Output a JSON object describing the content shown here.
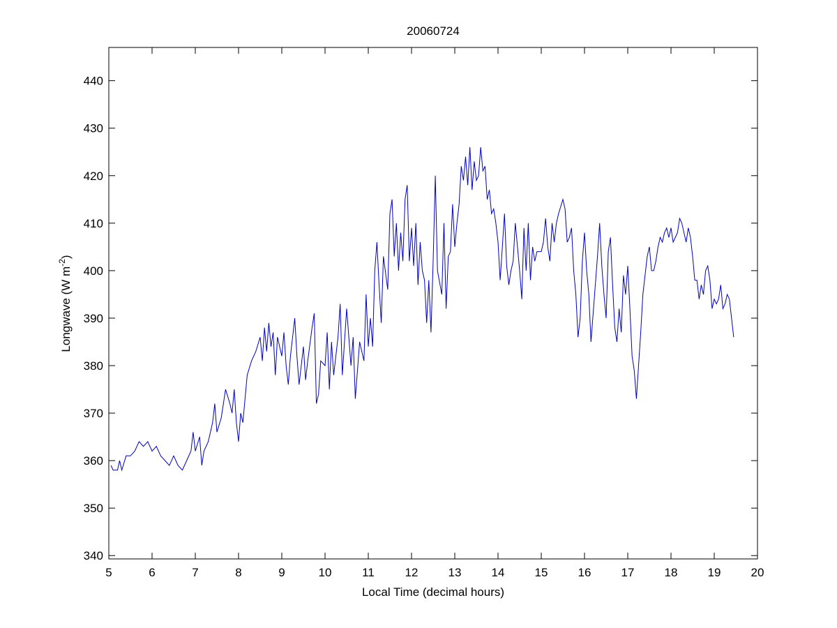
{
  "chart_data": {
    "type": "line",
    "title": "20060724",
    "xlabel": "Local Time (decimal hours)",
    "ylabel": {
      "text": "Longwave (W m",
      "superscript": "-2",
      "end": ")"
    },
    "xlim": [
      5,
      20
    ],
    "ylim": [
      339.3,
      447
    ],
    "xticks": [
      5,
      6,
      7,
      8,
      9,
      10,
      11,
      12,
      13,
      14,
      15,
      16,
      17,
      18,
      19,
      20
    ],
    "yticks": [
      340,
      350,
      360,
      370,
      380,
      390,
      400,
      410,
      420,
      430,
      440
    ],
    "grid": false,
    "series": [
      {
        "color": "#0000c0",
        "x": [
          5.05,
          5.1,
          5.2,
          5.25,
          5.3,
          5.4,
          5.5,
          5.6,
          5.7,
          5.8,
          5.9,
          6.0,
          6.1,
          6.2,
          6.3,
          6.4,
          6.5,
          6.6,
          6.7,
          6.8,
          6.9,
          6.95,
          7.0,
          7.1,
          7.15,
          7.2,
          7.3,
          7.4,
          7.45,
          7.5,
          7.6,
          7.7,
          7.8,
          7.85,
          7.9,
          7.95,
          8.0,
          8.05,
          8.1,
          8.2,
          8.3,
          8.4,
          8.5,
          8.55,
          8.6,
          8.65,
          8.7,
          8.75,
          8.8,
          8.85,
          8.9,
          9.0,
          9.05,
          9.1,
          9.15,
          9.2,
          9.3,
          9.35,
          9.4,
          9.5,
          9.55,
          9.6,
          9.7,
          9.75,
          9.8,
          9.85,
          9.9,
          10.0,
          10.05,
          10.1,
          10.15,
          10.2,
          10.3,
          10.35,
          10.4,
          10.45,
          10.5,
          10.6,
          10.65,
          10.7,
          10.8,
          10.9,
          10.95,
          11.0,
          11.05,
          11.1,
          11.15,
          11.2,
          11.25,
          11.3,
          11.35,
          11.45,
          11.5,
          11.55,
          11.6,
          11.65,
          11.7,
          11.75,
          11.8,
          11.85,
          11.9,
          11.95,
          12.0,
          12.05,
          12.1,
          12.15,
          12.2,
          12.25,
          12.3,
          12.35,
          12.4,
          12.45,
          12.5,
          12.55,
          12.6,
          12.7,
          12.75,
          12.8,
          12.85,
          12.9,
          12.95,
          13.0,
          13.05,
          13.1,
          13.15,
          13.2,
          13.25,
          13.3,
          13.35,
          13.4,
          13.45,
          13.5,
          13.55,
          13.6,
          13.65,
          13.7,
          13.75,
          13.8,
          13.85,
          13.9,
          13.95,
          14.0,
          14.05,
          14.1,
          14.15,
          14.2,
          14.25,
          14.3,
          14.35,
          14.4,
          14.45,
          14.5,
          14.55,
          14.6,
          14.65,
          14.7,
          14.75,
          14.8,
          14.85,
          14.9,
          15.0,
          15.05,
          15.1,
          15.15,
          15.2,
          15.25,
          15.3,
          15.35,
          15.4,
          15.5,
          15.55,
          15.6,
          15.65,
          15.7,
          15.75,
          15.8,
          15.85,
          15.9,
          15.95,
          16.0,
          16.05,
          16.1,
          16.15,
          16.2,
          16.3,
          16.35,
          16.4,
          16.45,
          16.5,
          16.55,
          16.6,
          16.65,
          16.7,
          16.75,
          16.8,
          16.85,
          16.9,
          16.95,
          17.0,
          17.05,
          17.1,
          17.15,
          17.2,
          17.25,
          17.3,
          17.35,
          17.4,
          17.45,
          17.5,
          17.55,
          17.6,
          17.65,
          17.7,
          17.75,
          17.8,
          17.85,
          17.9,
          17.95,
          18.0,
          18.05,
          18.1,
          18.15,
          18.2,
          18.25,
          18.3,
          18.35,
          18.4,
          18.45,
          18.5,
          18.55,
          18.6,
          18.65,
          18.7,
          18.75,
          18.8,
          18.85,
          18.9,
          18.95,
          19.0,
          19.05,
          19.1,
          19.15,
          19.2,
          19.25,
          19.3,
          19.35,
          19.4,
          19.45
        ],
        "values": [
          359,
          358,
          358,
          360,
          358,
          361,
          361,
          362,
          364,
          363,
          364,
          362,
          363,
          361,
          360,
          359,
          361,
          359,
          358,
          360,
          362,
          366,
          362,
          365,
          359,
          362,
          364,
          368,
          372,
          366,
          369,
          375,
          372,
          370,
          375,
          368,
          364,
          370,
          368,
          378,
          381,
          383,
          386,
          381,
          388,
          383,
          389,
          384,
          387,
          378,
          386,
          382,
          387,
          380,
          376,
          382,
          390,
          382,
          376,
          384,
          377,
          381,
          388,
          391,
          372,
          374,
          381,
          380,
          387,
          375,
          385,
          378,
          386,
          393,
          378,
          385,
          392,
          380,
          386,
          373,
          385,
          381,
          395,
          384,
          390,
          384,
          400,
          406,
          397,
          389,
          403,
          396,
          412,
          415,
          403,
          410,
          400,
          408,
          402,
          415,
          418,
          402,
          409,
          401,
          410,
          397,
          406,
          400,
          398,
          389,
          398,
          387,
          402,
          420,
          400,
          395,
          410,
          392,
          403,
          404,
          414,
          405,
          410,
          414,
          422,
          419,
          424,
          418,
          426,
          417,
          423,
          419,
          420,
          426,
          421,
          422,
          415,
          417,
          412,
          413,
          410,
          406,
          398,
          405,
          412,
          401,
          397,
          400,
          402,
          410,
          405,
          400,
          394,
          409,
          400,
          410,
          398,
          405,
          402,
          404,
          404,
          406,
          411,
          405,
          402,
          410,
          406,
          410,
          412,
          415,
          413,
          406,
          407,
          409,
          400,
          395,
          386,
          390,
          402,
          408,
          400,
          395,
          385,
          391,
          403,
          410,
          401,
          395,
          390,
          404,
          407,
          397,
          388,
          385,
          392,
          387,
          399,
          395,
          401,
          392,
          382,
          379,
          373,
          380,
          387,
          395,
          399,
          403,
          405,
          400,
          400,
          402,
          405,
          407,
          406,
          408,
          409,
          407,
          409,
          406,
          407,
          408,
          411,
          410,
          408,
          406,
          409,
          407,
          403,
          398,
          398,
          394,
          397,
          395,
          400,
          401,
          398,
          392,
          394,
          393,
          394,
          397,
          392,
          393,
          395,
          394,
          390,
          386
        ]
      }
    ]
  }
}
